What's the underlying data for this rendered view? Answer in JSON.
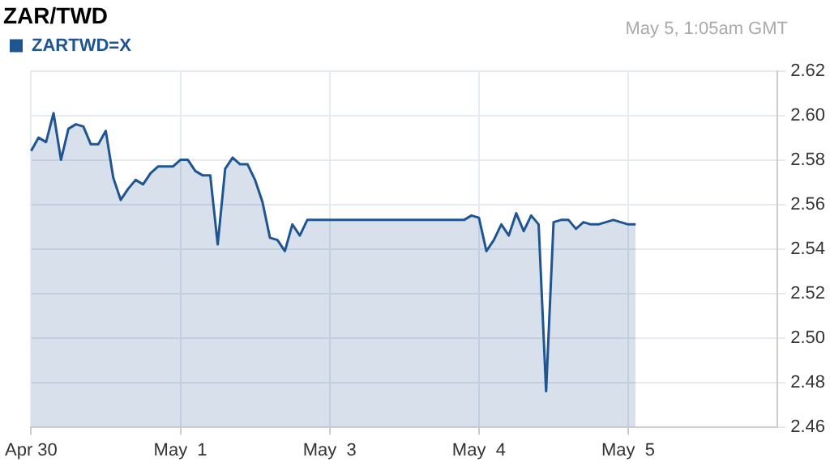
{
  "chart_data": {
    "type": "area",
    "title": "ZAR/TWD",
    "annotations": [
      "May 5, 1:05am GMT"
    ],
    "categories": [
      "Apr 30",
      null,
      null,
      null,
      null,
      null,
      null,
      null,
      null,
      null,
      null,
      null,
      null,
      null,
      null,
      null,
      null,
      null,
      null,
      null,
      "May  1",
      null,
      null,
      null,
      null,
      null,
      null,
      null,
      null,
      null,
      null,
      null,
      null,
      null,
      null,
      null,
      null,
      null,
      null,
      null,
      "May  3",
      null,
      null,
      null,
      null,
      null,
      null,
      null,
      null,
      null,
      null,
      null,
      null,
      null,
      null,
      null,
      null,
      null,
      null,
      null,
      "May  4",
      null,
      null,
      null,
      null,
      null,
      null,
      null,
      null,
      null,
      null,
      null,
      null,
      null,
      null,
      null,
      null,
      null,
      null,
      null,
      "May  5",
      null,
      null,
      null,
      null,
      null,
      null,
      null,
      null,
      null,
      null,
      null,
      null,
      null,
      null,
      null,
      null,
      null,
      null,
      null,
      null
    ],
    "series": [
      {
        "name": "ZARTWD=X",
        "color": "#1f5591",
        "values": [
          2.584,
          2.59,
          2.588,
          2.601,
          2.58,
          2.594,
          2.596,
          2.595,
          2.587,
          2.587,
          2.593,
          2.572,
          2.562,
          2.567,
          2.571,
          2.569,
          2.574,
          2.577,
          2.577,
          2.577,
          2.58,
          2.58,
          2.575,
          2.573,
          2.573,
          2.542,
          2.576,
          2.581,
          2.578,
          2.578,
          2.571,
          2.561,
          2.545,
          2.544,
          2.539,
          2.551,
          2.546,
          2.553,
          2.553,
          2.553,
          2.553,
          2.553,
          2.553,
          2.553,
          2.553,
          2.553,
          2.553,
          2.553,
          2.553,
          2.553,
          2.553,
          2.553,
          2.553,
          2.553,
          2.553,
          2.553,
          2.553,
          2.553,
          2.553,
          2.555,
          2.554,
          2.539,
          2.544,
          2.551,
          2.546,
          2.556,
          2.548,
          2.555,
          2.551,
          2.476,
          2.552,
          2.553,
          2.553,
          2.549,
          2.552,
          2.551,
          2.551,
          2.552,
          2.553,
          2.552,
          2.551,
          2.551,
          null,
          null,
          null,
          null,
          null,
          null,
          null,
          null,
          null,
          null,
          null,
          null,
          null,
          null,
          null,
          null,
          null,
          null,
          null
        ]
      }
    ],
    "ylim": [
      2.46,
      2.62
    ],
    "yticks": [
      2.46,
      2.48,
      {
        "value": 2.5,
        "label": "2.50"
      },
      2.52,
      2.54,
      2.56,
      2.58,
      {
        "value": 2.6,
        "label": "2.60"
      },
      2.62
    ],
    "grid": true,
    "legend": "top left",
    "marker": "none",
    "line_style": "solid"
  }
}
